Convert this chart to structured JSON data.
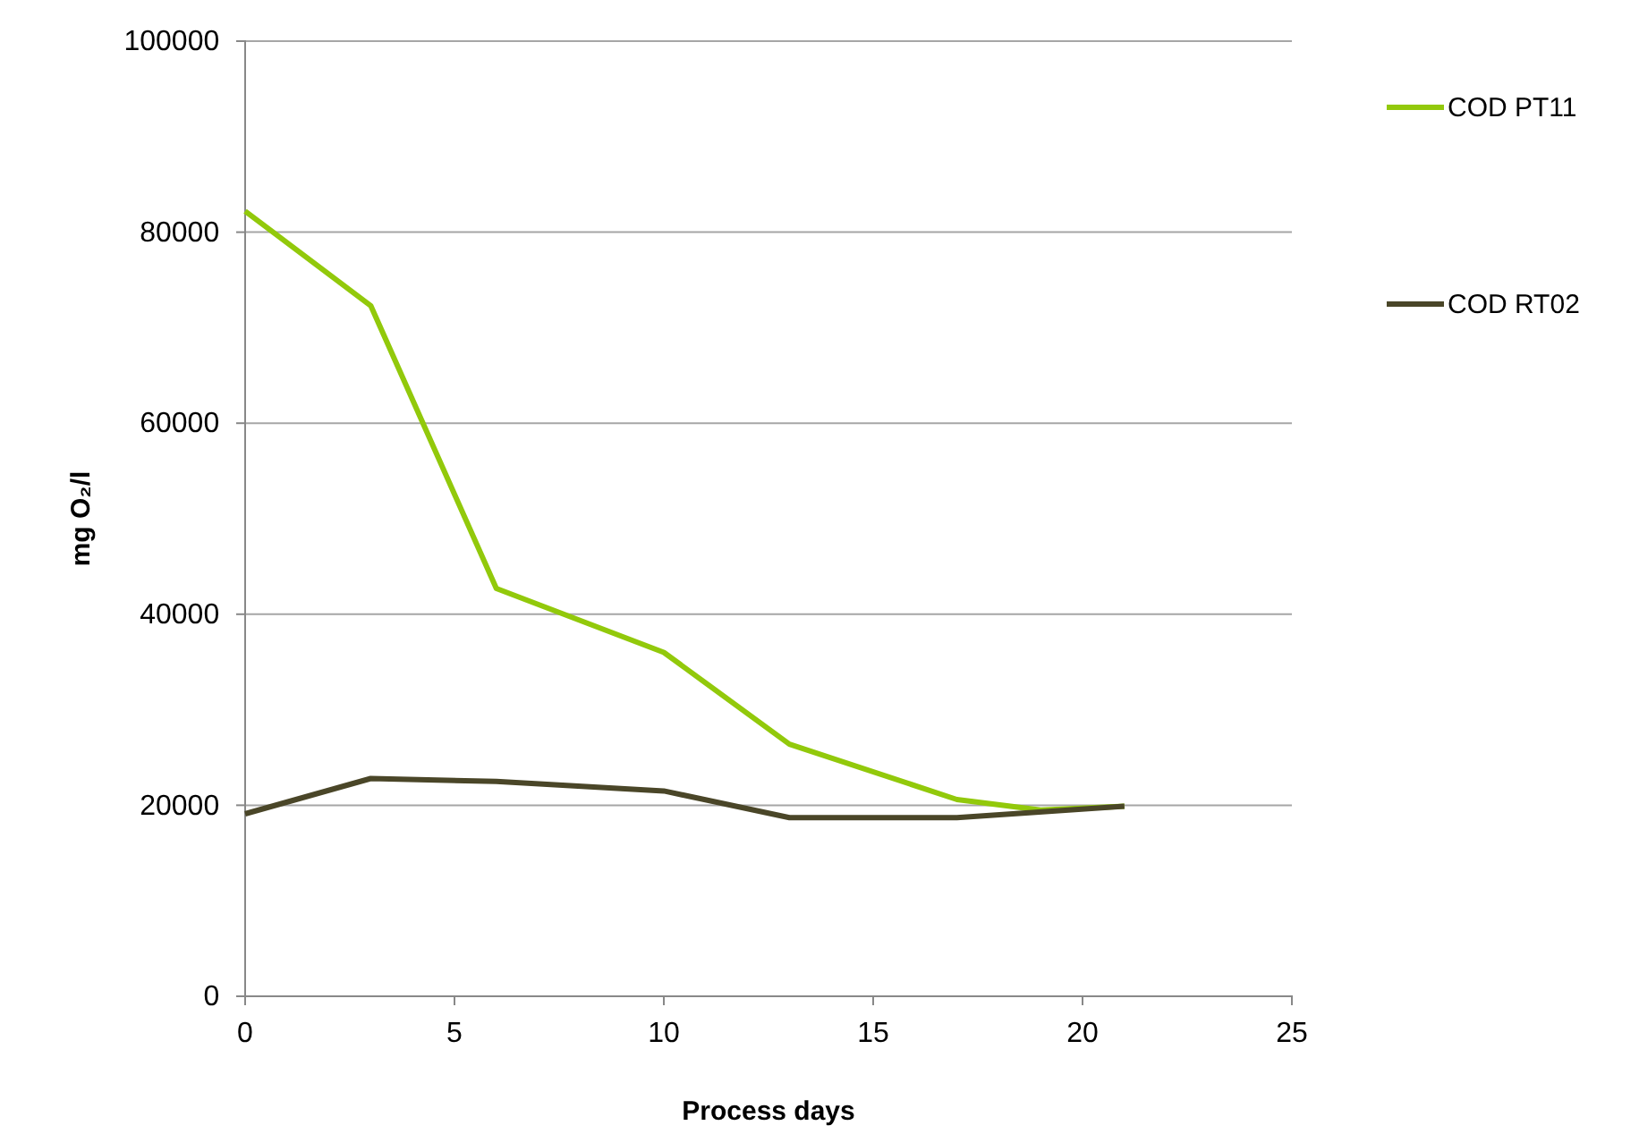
{
  "chart_data": {
    "type": "line",
    "xlabel": "Process days",
    "ylabel": "mg O₂/l",
    "xlim": [
      0,
      25
    ],
    "xticks": [
      0,
      5,
      10,
      15,
      20,
      25
    ],
    "ylim": [
      0,
      100000
    ],
    "yticks": [
      0,
      20000,
      40000,
      60000,
      80000,
      100000
    ],
    "grid": "y",
    "legend": "right",
    "series": [
      {
        "name": "COD PT11",
        "color": "#92c90b",
        "x": [
          0,
          3,
          6,
          10,
          13,
          17,
          19,
          21
        ],
        "values": [
          82200,
          72300,
          42700,
          36000,
          26400,
          20600,
          19500,
          19900
        ]
      },
      {
        "name": "COD RT02",
        "color": "#4a4628",
        "x": [
          0,
          3,
          6,
          10,
          13,
          17,
          21
        ],
        "values": [
          19100,
          22800,
          22500,
          21500,
          18700,
          18700,
          19900
        ]
      }
    ]
  }
}
